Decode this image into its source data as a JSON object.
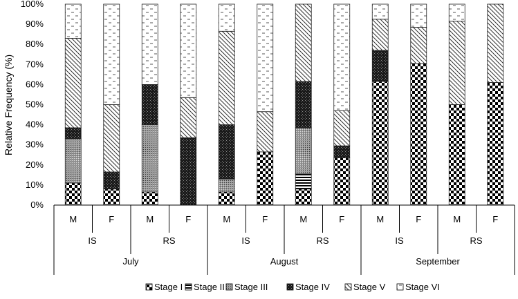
{
  "chart_data": {
    "type": "bar",
    "stacked": true,
    "ylabel": "Relative Frequency (%)",
    "ylim": [
      0,
      100
    ],
    "y_ticks": [
      "0%",
      "10%",
      "20%",
      "30%",
      "40%",
      "50%",
      "60%",
      "70%",
      "80%",
      "90%",
      "100%"
    ],
    "grid": false,
    "legend_position": "bottom",
    "months": [
      "July",
      "August",
      "September"
    ],
    "sites": [
      "IS",
      "RS",
      "IS",
      "RS",
      "IS",
      "RS"
    ],
    "categories": [
      "M",
      "F",
      "M",
      "F",
      "M",
      "F",
      "M",
      "F",
      "M",
      "F",
      "M",
      "F"
    ],
    "series": [
      {
        "name": "Stage I",
        "pattern": "checker",
        "values": [
          11,
          8,
          6.5,
          0,
          6.5,
          26.5,
          8,
          23.5,
          61.5,
          70.5,
          50,
          61
        ]
      },
      {
        "name": "Stage II",
        "pattern": "hstripe",
        "values": [
          0,
          0,
          0,
          0,
          0,
          0,
          7.5,
          0,
          0,
          0,
          0,
          0
        ]
      },
      {
        "name": "Stage III",
        "pattern": "finedots",
        "values": [
          22,
          0,
          33.5,
          0,
          6.5,
          0,
          23,
          0,
          0,
          0,
          0,
          0
        ]
      },
      {
        "name": "Stage IV",
        "pattern": "darkdots",
        "values": [
          5.5,
          8.5,
          20,
          33.5,
          27,
          0,
          23,
          6,
          15.5,
          0,
          0,
          0
        ]
      },
      {
        "name": "Stage V",
        "pattern": "diagonal",
        "values": [
          44.5,
          33.5,
          0,
          20,
          46.5,
          20,
          38.5,
          17.5,
          15.5,
          18,
          41.5,
          39
        ]
      },
      {
        "name": "Stage VI",
        "pattern": "dashes",
        "values": [
          17,
          50,
          40,
          46.5,
          13.5,
          53.5,
          0,
          53,
          7.5,
          11.5,
          8.5,
          0
        ]
      }
    ]
  }
}
